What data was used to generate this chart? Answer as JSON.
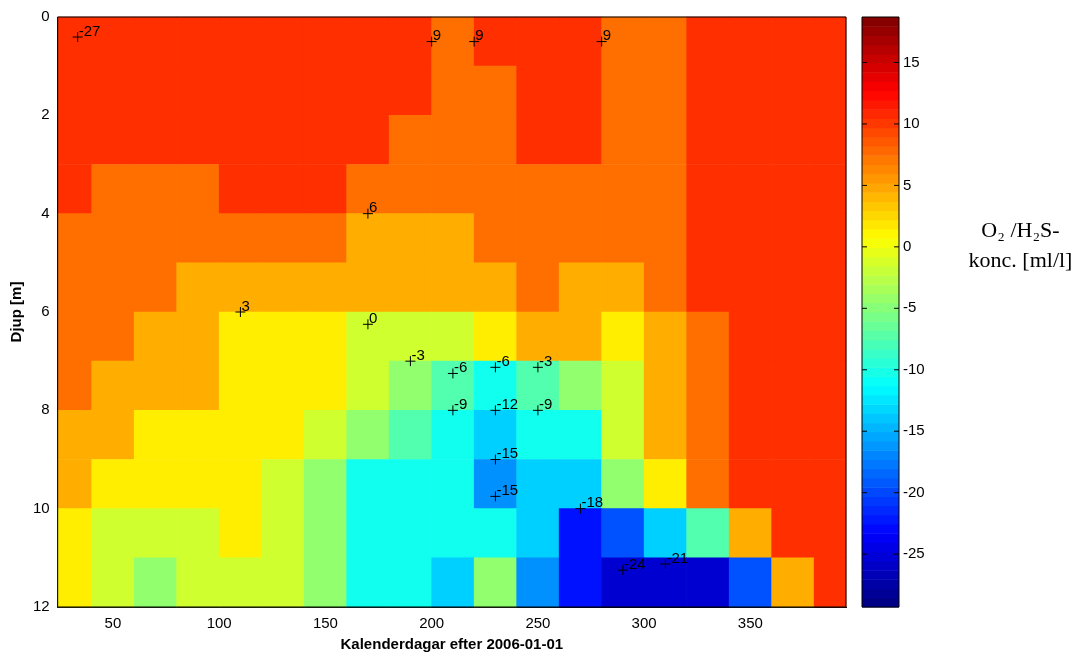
{
  "chart_data": {
    "type": "heatmap",
    "xlabel": "Kalenderdagar efter 2006-01-01",
    "ylabel": "Djup [m]",
    "clabel": "O₂ /H₂S-konc. [ml/l]",
    "x": [
      30,
      50,
      70,
      90,
      110,
      130,
      150,
      170,
      190,
      210,
      230,
      250,
      270,
      290,
      310,
      330,
      350,
      370,
      390
    ],
    "y": [
      0.5,
      1.5,
      2.5,
      3.5,
      4.5,
      5.5,
      6.5,
      7.5,
      8.5,
      9.5,
      10.5,
      11.5
    ],
    "cells": [
      [
        10.5,
        10.5,
        10.5,
        10.5,
        10.5,
        10.5,
        10.5,
        10.5,
        10.5,
        7.5,
        10.5,
        10.5,
        10.5,
        7.5,
        7.5,
        10.5,
        10.5,
        10.5,
        10.5
      ],
      [
        10.5,
        10.5,
        10.5,
        10.5,
        10.5,
        10.5,
        10.5,
        10.5,
        10.5,
        7.5,
        7.5,
        10.5,
        10.5,
        7.5,
        7.5,
        10.5,
        10.5,
        10.5,
        10.5
      ],
      [
        10.5,
        10.5,
        10.5,
        10.5,
        10.5,
        10.5,
        10.5,
        10.5,
        7.5,
        7.5,
        7.5,
        10.5,
        10.5,
        7.5,
        7.5,
        10.5,
        10.5,
        10.5,
        10.5
      ],
      [
        10.5,
        7.5,
        7.5,
        7.5,
        10.5,
        10.5,
        10.5,
        7.5,
        7.5,
        7.5,
        7.5,
        7.5,
        7.5,
        7.5,
        7.5,
        10.5,
        10.5,
        10.5,
        10.5
      ],
      [
        7.5,
        7.5,
        7.5,
        7.5,
        7.5,
        7.5,
        7.5,
        4.5,
        4.5,
        4.5,
        7.5,
        7.5,
        7.5,
        7.5,
        7.5,
        10.5,
        10.5,
        10.5,
        10.5
      ],
      [
        7.5,
        7.5,
        7.5,
        4.5,
        4.5,
        4.5,
        4.5,
        4.5,
        4.5,
        4.5,
        4.5,
        7.5,
        4.5,
        4.5,
        7.5,
        10.5,
        10.5,
        10.5,
        10.5
      ],
      [
        7.5,
        7.5,
        4.5,
        4.5,
        1.5,
        1.5,
        1.5,
        -1.5,
        -1.5,
        -1.5,
        1.5,
        4.5,
        4.5,
        1.5,
        4.5,
        7.5,
        10.5,
        10.5,
        10.5
      ],
      [
        7.5,
        4.5,
        4.5,
        4.5,
        1.5,
        1.5,
        1.5,
        -1.5,
        -4.5,
        -7.5,
        -10.5,
        -7.5,
        -4.5,
        -1.5,
        4.5,
        7.5,
        10.5,
        10.5,
        10.5
      ],
      [
        4.5,
        4.5,
        1.5,
        1.5,
        1.5,
        1.5,
        -1.5,
        -4.5,
        -7.5,
        -10.5,
        -13.5,
        -10.5,
        -10.5,
        -1.5,
        4.5,
        7.5,
        10.5,
        10.5,
        10.5
      ],
      [
        4.5,
        1.5,
        1.5,
        1.5,
        1.5,
        -1.5,
        -4.5,
        -10.5,
        -10.5,
        -10.5,
        -16.5,
        -13.5,
        -13.5,
        -4.5,
        1.5,
        7.5,
        10.5,
        10.5,
        10.5
      ],
      [
        1.5,
        -1.5,
        -1.5,
        -1.5,
        1.5,
        -1.5,
        -4.5,
        -10.5,
        -10.5,
        -10.5,
        -10.5,
        -13.5,
        -22.5,
        -19.5,
        -13.5,
        -7.5,
        4.5,
        10.5,
        10.5
      ],
      [
        1.5,
        -1.5,
        -4.5,
        -1.5,
        -1.5,
        -1.5,
        -4.5,
        -10.5,
        -10.5,
        -13.5,
        -4.5,
        -16.5,
        -22.5,
        -25.5,
        -25.5,
        -25.5,
        -19.5,
        4.5,
        10.5
      ]
    ],
    "xlim": [
      24,
      395
    ],
    "xticks": [
      50,
      100,
      150,
      200,
      250,
      300,
      350
    ],
    "ylim": [
      12,
      0
    ],
    "yticks": [
      0,
      2,
      4,
      6,
      8,
      10,
      12
    ],
    "clim": [
      -29.3,
      18.7
    ],
    "cticks": [
      -25,
      -20,
      -15,
      -10,
      -5,
      0,
      5,
      10,
      15
    ],
    "annotations": [
      "9",
      "6",
      "9",
      "3",
      "-6",
      "-15",
      "0",
      "-12",
      "-9",
      "-3",
      "-6",
      "-18",
      "-24",
      "-3",
      "-9",
      "9",
      "-21",
      "-15",
      "-27"
    ]
  }
}
